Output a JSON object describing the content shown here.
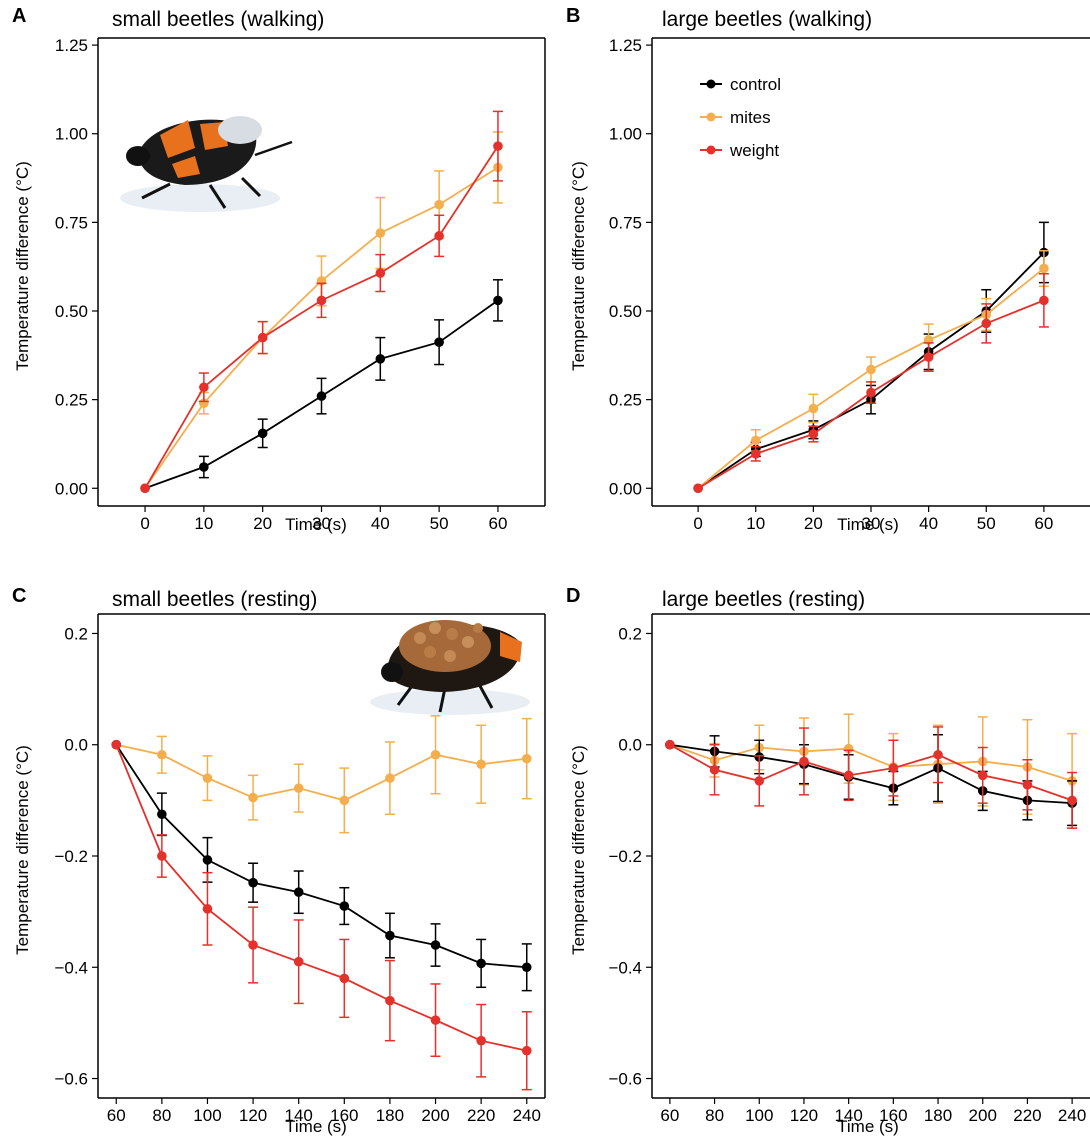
{
  "colors": {
    "control": "#000000",
    "mites": "#F4AE4D",
    "weight": "#E3312C"
  },
  "legend": [
    {
      "key": "control",
      "label": "control"
    },
    {
      "key": "mites",
      "label": "mites"
    },
    {
      "key": "weight",
      "label": "weight"
    }
  ],
  "chart_data": [
    {
      "panel": "A",
      "type": "line",
      "title": "small beetles (walking)",
      "xlabel": "Time (s)",
      "ylabel": "Temperature difference (°C)",
      "xlim": [
        -8,
        68
      ],
      "ylim": [
        -0.05,
        1.27
      ],
      "xticks": [
        0,
        10,
        20,
        30,
        40,
        50,
        60
      ],
      "yticks": [
        0.0,
        0.25,
        0.5,
        0.75,
        1.0,
        1.25
      ],
      "ytick_labels": [
        "0.00",
        "0.25",
        "0.50",
        "0.75",
        "1.00",
        "1.25"
      ],
      "x": [
        0,
        10,
        20,
        30,
        40,
        50,
        60
      ],
      "series": [
        {
          "name": "control",
          "values": [
            0.0,
            0.06,
            0.155,
            0.26,
            0.365,
            0.412,
            0.53
          ],
          "err": [
            0.0,
            0.03,
            0.04,
            0.05,
            0.06,
            0.063,
            0.058
          ]
        },
        {
          "name": "mites",
          "values": [
            0.0,
            0.24,
            0.425,
            0.585,
            0.72,
            0.8,
            0.905
          ],
          "err": [
            0.0,
            0.03,
            0.045,
            0.07,
            0.1,
            0.095,
            0.1
          ]
        },
        {
          "name": "weight",
          "values": [
            0.0,
            0.285,
            0.425,
            0.53,
            0.607,
            0.712,
            0.965
          ],
          "err": [
            0.0,
            0.04,
            0.045,
            0.048,
            0.052,
            0.058,
            0.098
          ]
        }
      ]
    },
    {
      "panel": "B",
      "type": "line",
      "title": "large beetles (walking)",
      "xlabel": "Time (s)",
      "ylabel": "Temperature difference (°C)",
      "xlim": [
        -8,
        68
      ],
      "ylim": [
        -0.05,
        1.27
      ],
      "xticks": [
        0,
        10,
        20,
        30,
        40,
        50,
        60
      ],
      "yticks": [
        0.0,
        0.25,
        0.5,
        0.75,
        1.0,
        1.25
      ],
      "ytick_labels": [
        "0.00",
        "0.25",
        "0.50",
        "0.75",
        "1.00",
        "1.25"
      ],
      "x": [
        0,
        10,
        20,
        30,
        40,
        50,
        60
      ],
      "series": [
        {
          "name": "control",
          "values": [
            0.0,
            0.11,
            0.165,
            0.25,
            0.385,
            0.5,
            0.665
          ],
          "err": [
            0.0,
            0.02,
            0.025,
            0.04,
            0.05,
            0.06,
            0.085
          ]
        },
        {
          "name": "mites",
          "values": [
            0.0,
            0.135,
            0.225,
            0.335,
            0.418,
            0.49,
            0.62
          ],
          "err": [
            0.0,
            0.03,
            0.04,
            0.035,
            0.045,
            0.045,
            0.05
          ]
        },
        {
          "name": "weight",
          "values": [
            0.0,
            0.097,
            0.153,
            0.27,
            0.37,
            0.465,
            0.53
          ],
          "err": [
            0.0,
            0.02,
            0.022,
            0.03,
            0.04,
            0.055,
            0.075
          ]
        }
      ]
    },
    {
      "panel": "C",
      "type": "line",
      "title": "small beetles (resting)",
      "xlabel": "Time (s)",
      "ylabel": "Temperature difference (°C)",
      "xlim": [
        52,
        248
      ],
      "ylim": [
        -0.635,
        0.235
      ],
      "xticks": [
        60,
        80,
        100,
        120,
        140,
        160,
        180,
        200,
        220,
        240
      ],
      "yticks": [
        -0.6,
        -0.4,
        -0.2,
        0.0,
        0.2
      ],
      "ytick_labels": [
        "−0.6",
        "−0.4",
        "−0.2",
        "0.0",
        "0.2"
      ],
      "x": [
        60,
        80,
        100,
        120,
        140,
        160,
        180,
        200,
        220,
        240
      ],
      "series": [
        {
          "name": "mites",
          "values": [
            0.0,
            -0.018,
            -0.06,
            -0.095,
            -0.078,
            -0.1,
            -0.06,
            -0.018,
            -0.035,
            -0.025
          ],
          "err": [
            0.0,
            0.033,
            0.04,
            0.04,
            0.043,
            0.058,
            0.065,
            0.07,
            0.07,
            0.072
          ]
        },
        {
          "name": "control",
          "values": [
            0.0,
            -0.125,
            -0.207,
            -0.248,
            -0.265,
            -0.29,
            -0.343,
            -0.36,
            -0.393,
            -0.4
          ],
          "err": [
            0.0,
            0.038,
            0.04,
            0.035,
            0.038,
            0.033,
            0.04,
            0.038,
            0.043,
            0.042
          ]
        },
        {
          "name": "weight",
          "values": [
            0.0,
            -0.2,
            -0.295,
            -0.36,
            -0.39,
            -0.42,
            -0.46,
            -0.495,
            -0.532,
            -0.55
          ],
          "err": [
            0.0,
            0.038,
            0.065,
            0.068,
            0.075,
            0.07,
            0.072,
            0.065,
            0.065,
            0.07
          ]
        }
      ]
    },
    {
      "panel": "D",
      "type": "line",
      "title": "large beetles (resting)",
      "xlabel": "Time (s)",
      "ylabel": "Temperature difference (°C)",
      "xlim": [
        52,
        248
      ],
      "ylim": [
        -0.635,
        0.235
      ],
      "xticks": [
        60,
        80,
        100,
        120,
        140,
        160,
        180,
        200,
        220,
        240
      ],
      "yticks": [
        -0.6,
        -0.4,
        -0.2,
        0.0,
        0.2
      ],
      "ytick_labels": [
        "−0.6",
        "−0.4",
        "−0.2",
        "0.0",
        "0.2"
      ],
      "x": [
        60,
        80,
        100,
        120,
        140,
        160,
        180,
        200,
        220,
        240
      ],
      "series": [
        {
          "name": "mites",
          "values": [
            0.0,
            -0.028,
            -0.005,
            -0.012,
            -0.007,
            -0.04,
            -0.035,
            -0.03,
            -0.04,
            -0.065
          ],
          "err": [
            0.0,
            0.03,
            0.04,
            0.06,
            0.062,
            0.06,
            0.07,
            0.08,
            0.085,
            0.085
          ]
        },
        {
          "name": "control",
          "values": [
            0.0,
            -0.012,
            -0.022,
            -0.035,
            -0.058,
            -0.078,
            -0.042,
            -0.083,
            -0.1,
            -0.105
          ],
          "err": [
            0.0,
            0.028,
            0.03,
            0.035,
            0.04,
            0.03,
            0.06,
            0.035,
            0.035,
            0.04
          ]
        },
        {
          "name": "weight",
          "values": [
            0.0,
            -0.045,
            -0.065,
            -0.03,
            -0.055,
            -0.042,
            -0.018,
            -0.055,
            -0.072,
            -0.1
          ],
          "err": [
            0.0,
            0.045,
            0.045,
            0.06,
            0.045,
            0.05,
            0.05,
            0.05,
            0.045,
            0.05
          ]
        }
      ]
    }
  ]
}
